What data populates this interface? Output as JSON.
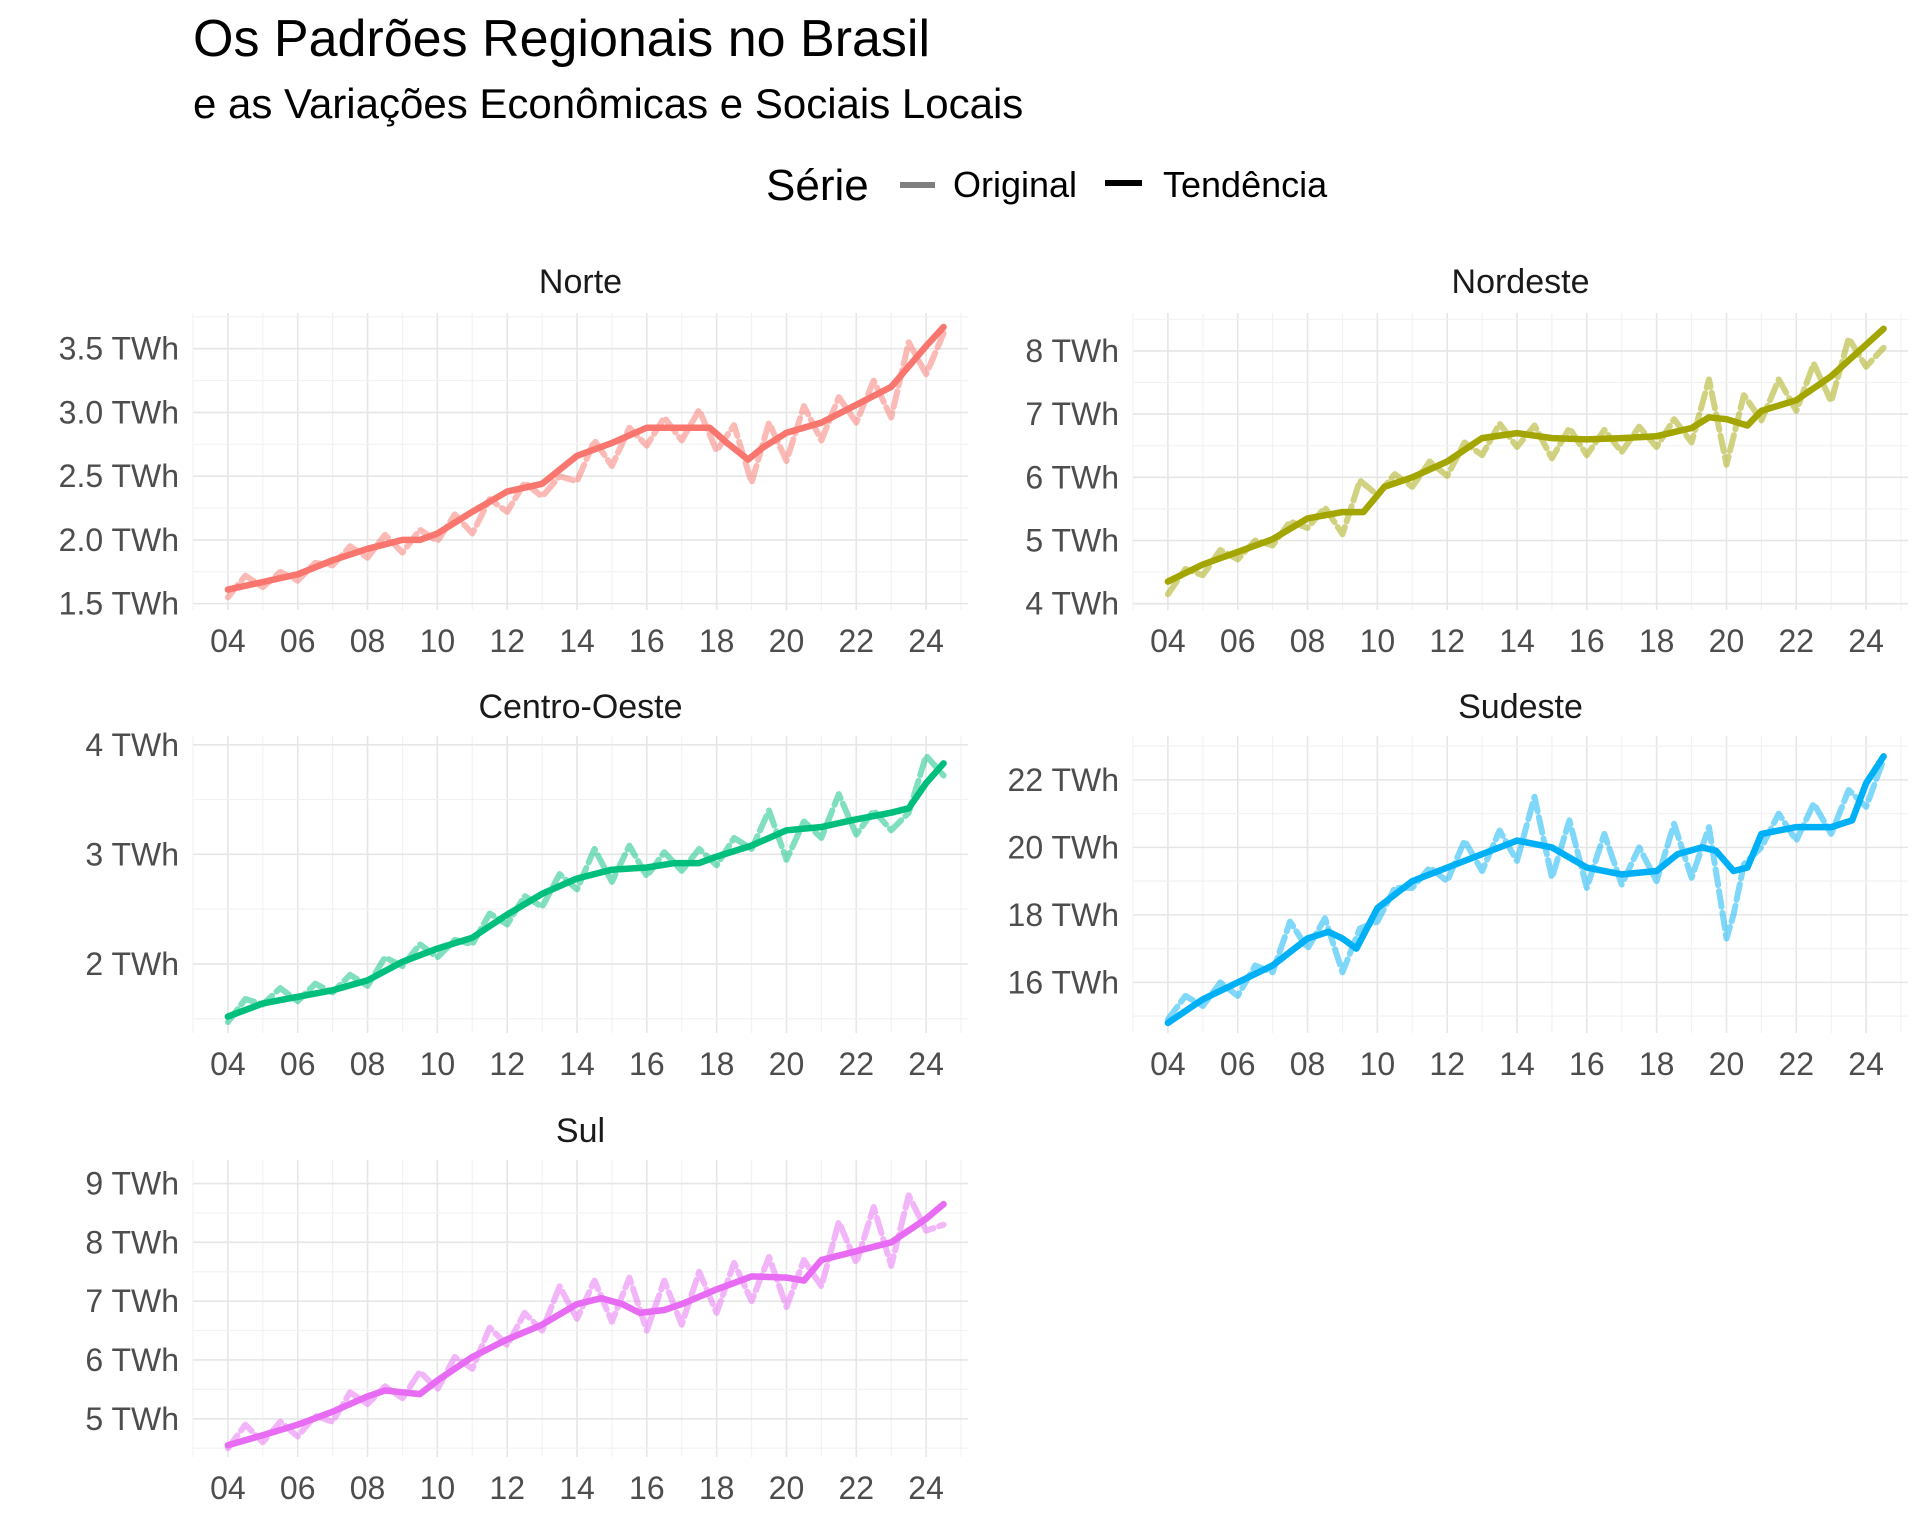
{
  "title": "Os Padrões Regionais no Brasil",
  "subtitle": "e as Variações Econômicas e Sociais Locais",
  "legend": {
    "title": "Série",
    "placement": "top-center",
    "items": [
      {
        "label": "Original",
        "color": "#7f7f7f"
      },
      {
        "label": "Tendência",
        "color": "#000000"
      }
    ]
  },
  "chart_data": [
    {
      "type": "line",
      "title": "Norte",
      "color": "#F8766D",
      "x_ticks": [
        "04",
        "06",
        "08",
        "10",
        "12",
        "14",
        "16",
        "18",
        "20",
        "22",
        "24"
      ],
      "y_ticks": [
        "1.5 TWh",
        "2.0 TWh",
        "2.5 TWh",
        "3.0 TWh",
        "3.5 TWh"
      ],
      "xlim": [
        2003.0,
        2025.2
      ],
      "ylim": [
        1.45,
        3.78
      ],
      "grid": true,
      "series": [
        {
          "name": "Original",
          "x": [
            2004.0,
            2004.5,
            2005.0,
            2005.5,
            2006.0,
            2006.5,
            2007.0,
            2007.5,
            2008.0,
            2008.5,
            2009.0,
            2009.5,
            2010.0,
            2010.5,
            2011.0,
            2011.5,
            2012.0,
            2012.5,
            2013.0,
            2013.5,
            2014.0,
            2014.5,
            2015.0,
            2015.5,
            2016.0,
            2016.5,
            2017.0,
            2017.5,
            2018.0,
            2018.5,
            2019.0,
            2019.5,
            2020.0,
            2020.5,
            2021.0,
            2021.5,
            2022.0,
            2022.5,
            2023.0,
            2023.5,
            2024.0,
            2024.5
          ],
          "y": [
            1.55,
            1.72,
            1.63,
            1.75,
            1.68,
            1.82,
            1.8,
            1.95,
            1.86,
            2.04,
            1.9,
            2.08,
            1.99,
            2.2,
            2.05,
            2.32,
            2.22,
            2.45,
            2.34,
            2.5,
            2.46,
            2.78,
            2.58,
            2.88,
            2.74,
            2.96,
            2.78,
            3.02,
            2.7,
            2.9,
            2.45,
            2.92,
            2.62,
            3.05,
            2.78,
            3.12,
            2.92,
            3.25,
            2.96,
            3.55,
            3.3,
            3.62
          ]
        },
        {
          "name": "Tendência",
          "x": [
            2004.0,
            2005.0,
            2006.0,
            2007.0,
            2008.0,
            2009.0,
            2009.5,
            2010.0,
            2011.0,
            2012.0,
            2013.0,
            2014.0,
            2015.0,
            2016.0,
            2017.0,
            2017.8,
            2018.3,
            2018.9,
            2019.3,
            2020.0,
            2021.0,
            2022.0,
            2023.0,
            2024.0,
            2024.5
          ],
          "y": [
            1.61,
            1.67,
            1.73,
            1.84,
            1.93,
            2.0,
            2.0,
            2.05,
            2.22,
            2.38,
            2.44,
            2.66,
            2.76,
            2.88,
            2.88,
            2.88,
            2.76,
            2.63,
            2.72,
            2.84,
            2.92,
            3.06,
            3.2,
            3.52,
            3.67
          ]
        }
      ]
    },
    {
      "type": "line",
      "title": "Nordeste",
      "color": "#A3A500",
      "x_ticks": [
        "04",
        "06",
        "08",
        "10",
        "12",
        "14",
        "16",
        "18",
        "20",
        "22",
        "24"
      ],
      "y_ticks": [
        "4 TWh",
        "5 TWh",
        "6 TWh",
        "7 TWh",
        "8 TWh"
      ],
      "xlim": [
        2003.0,
        2025.2
      ],
      "ylim": [
        3.9,
        8.6
      ],
      "grid": true,
      "series": [
        {
          "name": "Original",
          "x": [
            2004.0,
            2004.5,
            2005.0,
            2005.5,
            2006.0,
            2006.5,
            2007.0,
            2007.5,
            2008.0,
            2008.5,
            2009.0,
            2009.5,
            2010.0,
            2010.5,
            2011.0,
            2011.5,
            2012.0,
            2012.5,
            2013.0,
            2013.5,
            2014.0,
            2014.5,
            2015.0,
            2015.5,
            2016.0,
            2016.5,
            2017.0,
            2017.5,
            2018.0,
            2018.5,
            2019.0,
            2019.5,
            2020.0,
            2020.5,
            2021.0,
            2021.5,
            2022.0,
            2022.5,
            2023.0,
            2023.5,
            2024.0,
            2024.5
          ],
          "y": [
            4.15,
            4.55,
            4.45,
            4.85,
            4.7,
            5.0,
            4.92,
            5.3,
            5.2,
            5.52,
            5.1,
            5.95,
            5.72,
            6.05,
            5.85,
            6.25,
            6.02,
            6.55,
            6.35,
            6.85,
            6.48,
            6.82,
            6.3,
            6.78,
            6.35,
            6.75,
            6.4,
            6.8,
            6.48,
            6.92,
            6.55,
            7.55,
            6.2,
            7.3,
            6.9,
            7.55,
            7.05,
            7.8,
            7.2,
            8.2,
            7.75,
            8.05
          ]
        },
        {
          "name": "Tendência",
          "x": [
            2004.0,
            2005.0,
            2006.0,
            2007.0,
            2008.0,
            2009.0,
            2009.6,
            2010.2,
            2011.0,
            2012.0,
            2013.0,
            2014.0,
            2015.0,
            2016.0,
            2017.0,
            2018.0,
            2019.0,
            2019.5,
            2020.0,
            2020.6,
            2021.0,
            2022.0,
            2023.0,
            2024.0,
            2024.5
          ],
          "y": [
            4.35,
            4.62,
            4.82,
            5.02,
            5.35,
            5.45,
            5.45,
            5.85,
            6.0,
            6.25,
            6.62,
            6.7,
            6.62,
            6.6,
            6.62,
            6.65,
            6.78,
            6.95,
            6.92,
            6.82,
            7.05,
            7.22,
            7.6,
            8.1,
            8.35
          ]
        }
      ]
    },
    {
      "type": "line",
      "title": "Centro-Oeste",
      "color": "#00BF7D",
      "x_ticks": [
        "04",
        "06",
        "08",
        "10",
        "12",
        "14",
        "16",
        "18",
        "20",
        "22",
        "24"
      ],
      "y_ticks": [
        "2 TWh",
        "3 TWh",
        "4 TWh"
      ],
      "xlim": [
        2003.0,
        2025.2
      ],
      "ylim": [
        1.37,
        4.08
      ],
      "grid": true,
      "series": [
        {
          "name": "Original",
          "x": [
            2004.0,
            2004.5,
            2005.0,
            2005.5,
            2006.0,
            2006.5,
            2007.0,
            2007.5,
            2008.0,
            2008.5,
            2009.0,
            2009.5,
            2010.0,
            2010.5,
            2011.0,
            2011.5,
            2012.0,
            2012.5,
            2013.0,
            2013.5,
            2014.0,
            2014.5,
            2015.0,
            2015.5,
            2016.0,
            2016.5,
            2017.0,
            2017.5,
            2018.0,
            2018.5,
            2019.0,
            2019.5,
            2020.0,
            2020.5,
            2021.0,
            2021.5,
            2022.0,
            2022.5,
            2023.0,
            2023.5,
            2024.0,
            2024.5
          ],
          "y": [
            1.47,
            1.68,
            1.63,
            1.78,
            1.66,
            1.82,
            1.74,
            1.9,
            1.8,
            2.06,
            1.98,
            2.18,
            2.06,
            2.22,
            2.18,
            2.46,
            2.36,
            2.62,
            2.52,
            2.82,
            2.68,
            3.05,
            2.75,
            3.08,
            2.8,
            3.02,
            2.85,
            3.05,
            2.9,
            3.15,
            3.05,
            3.4,
            2.95,
            3.3,
            3.15,
            3.55,
            3.18,
            3.4,
            3.22,
            3.38,
            3.9,
            3.72
          ]
        },
        {
          "name": "Tendência",
          "x": [
            2004.0,
            2005.0,
            2006.0,
            2007.0,
            2008.0,
            2009.0,
            2010.0,
            2011.0,
            2012.0,
            2013.0,
            2014.0,
            2015.0,
            2016.0,
            2016.8,
            2017.5,
            2018.0,
            2019.0,
            2020.0,
            2021.0,
            2022.0,
            2023.0,
            2023.5,
            2024.0,
            2024.5
          ],
          "y": [
            1.52,
            1.64,
            1.7,
            1.76,
            1.85,
            2.02,
            2.14,
            2.24,
            2.45,
            2.64,
            2.78,
            2.86,
            2.88,
            2.92,
            2.92,
            2.98,
            3.08,
            3.22,
            3.25,
            3.32,
            3.38,
            3.42,
            3.65,
            3.83
          ]
        }
      ]
    },
    {
      "type": "line",
      "title": "Sudeste",
      "color": "#00B0F6",
      "x_ticks": [
        "04",
        "06",
        "08",
        "10",
        "12",
        "14",
        "16",
        "18",
        "20",
        "22",
        "24"
      ],
      "y_ticks": [
        "16 TWh",
        "18 TWh",
        "20 TWh",
        "22 TWh"
      ],
      "xlim": [
        2003.0,
        2025.2
      ],
      "ylim": [
        14.5,
        23.3
      ],
      "grid": true,
      "series": [
        {
          "name": "Original",
          "x": [
            2004.0,
            2004.5,
            2005.0,
            2005.5,
            2006.0,
            2006.5,
            2007.0,
            2007.5,
            2008.0,
            2008.5,
            2009.0,
            2009.5,
            2010.0,
            2010.5,
            2011.0,
            2011.5,
            2012.0,
            2012.5,
            2013.0,
            2013.5,
            2014.0,
            2014.5,
            2015.0,
            2015.5,
            2016.0,
            2016.5,
            2017.0,
            2017.5,
            2018.0,
            2018.5,
            2019.0,
            2019.5,
            2020.0,
            2020.2,
            2020.5,
            2021.0,
            2021.5,
            2022.0,
            2022.5,
            2023.0,
            2023.5,
            2024.0,
            2024.5
          ],
          "y": [
            14.9,
            15.6,
            15.3,
            16.0,
            15.6,
            16.5,
            16.3,
            17.8,
            17.0,
            17.9,
            16.3,
            17.6,
            17.8,
            18.8,
            18.8,
            19.4,
            19.0,
            20.2,
            19.3,
            20.5,
            19.6,
            21.5,
            19.1,
            20.8,
            18.8,
            20.4,
            18.9,
            20.0,
            19.0,
            20.7,
            19.1,
            20.6,
            17.3,
            18.0,
            19.5,
            20.0,
            21.0,
            20.2,
            21.3,
            20.4,
            21.7,
            21.2,
            22.6
          ]
        },
        {
          "name": "Tendência",
          "x": [
            2004.0,
            2005.0,
            2006.0,
            2007.0,
            2008.0,
            2008.6,
            2009.0,
            2009.4,
            2010.0,
            2011.0,
            2012.0,
            2013.0,
            2014.0,
            2015.0,
            2016.0,
            2017.0,
            2018.0,
            2018.6,
            2019.3,
            2019.7,
            2020.2,
            2020.6,
            2021.0,
            2022.0,
            2023.0,
            2023.6,
            2024.0,
            2024.5
          ],
          "y": [
            14.8,
            15.5,
            16.0,
            16.5,
            17.3,
            17.5,
            17.3,
            17.0,
            18.2,
            19.0,
            19.4,
            19.8,
            20.2,
            20.0,
            19.4,
            19.2,
            19.3,
            19.8,
            20.0,
            19.9,
            19.3,
            19.4,
            20.4,
            20.6,
            20.6,
            20.8,
            21.9,
            22.7
          ]
        }
      ]
    },
    {
      "type": "line",
      "title": "Sul",
      "color": "#E76BF3",
      "x_ticks": [
        "04",
        "06",
        "08",
        "10",
        "12",
        "14",
        "16",
        "18",
        "20",
        "22",
        "24"
      ],
      "y_ticks": [
        "5 TWh",
        "6 TWh",
        "7 TWh",
        "8 TWh",
        "9 TWh"
      ],
      "xlim": [
        2003.0,
        2025.2
      ],
      "ylim": [
        4.35,
        9.4
      ],
      "grid": true,
      "series": [
        {
          "name": "Original",
          "x": [
            2004.0,
            2004.5,
            2005.0,
            2005.5,
            2006.0,
            2006.5,
            2007.0,
            2007.5,
            2008.0,
            2008.5,
            2009.0,
            2009.5,
            2010.0,
            2010.5,
            2011.0,
            2011.5,
            2012.0,
            2012.5,
            2013.0,
            2013.5,
            2014.0,
            2014.5,
            2015.0,
            2015.5,
            2016.0,
            2016.5,
            2017.0,
            2017.5,
            2018.0,
            2018.5,
            2019.0,
            2019.5,
            2020.0,
            2020.5,
            2021.0,
            2021.5,
            2022.0,
            2022.5,
            2023.0,
            2023.5,
            2024.0,
            2024.5
          ],
          "y": [
            4.5,
            4.9,
            4.6,
            4.95,
            4.7,
            5.05,
            4.95,
            5.45,
            5.25,
            5.55,
            5.35,
            5.8,
            5.5,
            6.05,
            5.85,
            6.55,
            6.25,
            6.8,
            6.5,
            7.25,
            6.7,
            7.35,
            6.65,
            7.4,
            6.5,
            7.35,
            6.6,
            7.5,
            6.8,
            7.65,
            7.0,
            7.75,
            6.9,
            7.7,
            7.25,
            8.35,
            7.65,
            8.6,
            7.6,
            8.8,
            8.2,
            8.3
          ]
        },
        {
          "name": "Tendência",
          "x": [
            2004.0,
            2005.0,
            2006.0,
            2007.0,
            2008.0,
            2008.5,
            2009.0,
            2009.5,
            2010.0,
            2011.0,
            2012.0,
            2013.0,
            2014.0,
            2014.7,
            2015.3,
            2015.8,
            2016.5,
            2017.0,
            2018.0,
            2019.0,
            2020.0,
            2020.5,
            2021.0,
            2022.0,
            2023.0,
            2024.0,
            2024.5
          ],
          "y": [
            4.55,
            4.72,
            4.9,
            5.12,
            5.38,
            5.48,
            5.45,
            5.42,
            5.65,
            6.05,
            6.35,
            6.6,
            6.95,
            7.05,
            6.95,
            6.8,
            6.85,
            6.95,
            7.2,
            7.42,
            7.4,
            7.35,
            7.7,
            7.85,
            8.0,
            8.4,
            8.65
          ]
        }
      ]
    }
  ]
}
